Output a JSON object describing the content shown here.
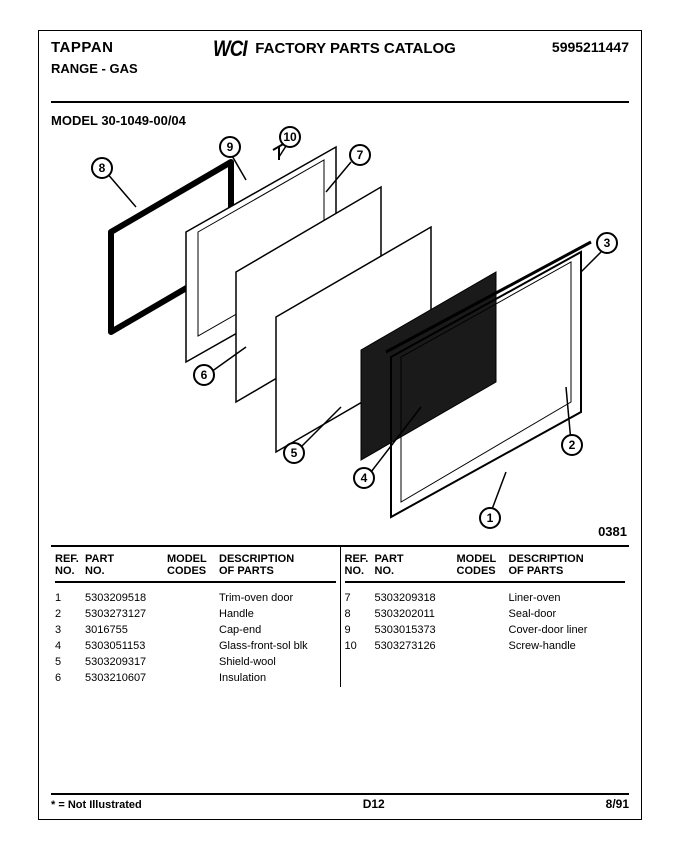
{
  "header": {
    "brand": "TAPPAN",
    "sub": "RANGE - GAS",
    "logo": "WCI",
    "title": "FACTORY PARTS CATALOG",
    "catalog_no": "5995211447"
  },
  "model_line": "MODEL 30-1049-00/04",
  "diagram_code": "0381",
  "callouts": [
    "1",
    "2",
    "3",
    "4",
    "5",
    "6",
    "7",
    "8",
    "9",
    "10"
  ],
  "table": {
    "headers": {
      "ref1": "REF.",
      "ref2": "NO.",
      "part1": "PART",
      "part2": "NO.",
      "model1": "MODEL",
      "model2": "CODES",
      "desc1": "DESCRIPTION",
      "desc2": "OF PARTS"
    },
    "left": [
      {
        "ref": "1",
        "part": "5303209518",
        "model": "",
        "desc": "Trim-oven door"
      },
      {
        "ref": "2",
        "part": "5303273127",
        "model": "",
        "desc": "Handle"
      },
      {
        "ref": "3",
        "part": "3016755",
        "model": "",
        "desc": "Cap-end"
      },
      {
        "ref": "4",
        "part": "5303051153",
        "model": "",
        "desc": "Glass-front-sol blk"
      },
      {
        "ref": "5",
        "part": "5303209317",
        "model": "",
        "desc": "Shield-wool"
      },
      {
        "ref": "6",
        "part": "5303210607",
        "model": "",
        "desc": "Insulation"
      }
    ],
    "right": [
      {
        "ref": "7",
        "part": "5303209318",
        "model": "",
        "desc": "Liner-oven"
      },
      {
        "ref": "8",
        "part": "5303202011",
        "model": "",
        "desc": "Seal-door"
      },
      {
        "ref": "9",
        "part": "5303015373",
        "model": "",
        "desc": "Cover-door liner"
      },
      {
        "ref": "10",
        "part": "5303273126",
        "model": "",
        "desc": "Screw-handle"
      }
    ]
  },
  "footer": {
    "note": "* = Not Illustrated",
    "page": "D12",
    "date": "8/91"
  },
  "colors": {
    "text": "#000000",
    "bg": "#ffffff",
    "panel_dark": "#1a1a1a"
  }
}
